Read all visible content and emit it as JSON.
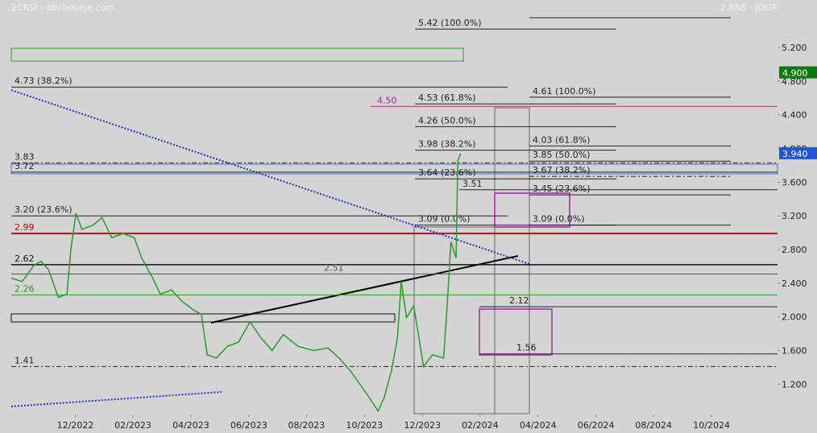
{
  "chart_data": {
    "type": "line",
    "title": "2CRSI - abcbourse.com",
    "subtitle": "2 ANS · JOUR",
    "series": [
      {
        "name": "2CRSI",
        "color": "#2a9a2a",
        "x": [
          2022.732,
          2022.764,
          2022.797,
          2022.818,
          2022.84,
          2022.868,
          2022.893,
          2022.904,
          2022.919,
          2022.936,
          2022.968,
          2022.994,
          2023.022,
          2023.054,
          2023.087,
          2023.108,
          2023.14,
          2023.162,
          2023.194,
          2023.226,
          2023.258,
          2023.28,
          2023.297,
          2023.323,
          2023.355,
          2023.387,
          2023.42,
          2023.452,
          2023.484,
          2023.516,
          2023.559,
          2023.602,
          2023.645,
          2023.677,
          2023.709,
          2023.742,
          2023.774,
          2023.789,
          2023.806,
          2023.828,
          2023.845,
          2023.856,
          2023.871,
          2023.892,
          2023.907,
          2023.92,
          2023.946,
          2023.978,
          2023.989,
          2023.999,
          2024.014,
          2024.019,
          2024.027
        ],
        "values": [
          2.46,
          2.42,
          2.61,
          2.66,
          2.56,
          2.23,
          2.27,
          2.8,
          3.23,
          3.04,
          3.09,
          3.18,
          2.94,
          2.99,
          2.94,
          2.7,
          2.46,
          2.27,
          2.32,
          2.18,
          2.08,
          2.03,
          1.55,
          1.51,
          1.65,
          1.7,
          1.94,
          1.75,
          1.6,
          1.79,
          1.65,
          1.6,
          1.63,
          1.51,
          1.36,
          1.17,
          0.98,
          0.88,
          1.03,
          1.36,
          1.75,
          2.42,
          1.99,
          2.13,
          1.75,
          1.41,
          1.55,
          1.51,
          2.18,
          2.89,
          2.7,
          3.85,
          3.94
        ]
      }
    ],
    "xlim": [
      2022.7,
      2024.94
    ],
    "ylim": [
      0.84,
      5.765
    ],
    "xticks": [
      {
        "value": 2022.917,
        "label": "12/2022"
      },
      {
        "value": 2023.083,
        "label": "02/2023"
      },
      {
        "value": 2023.25,
        "label": "04/2023"
      },
      {
        "value": 2023.417,
        "label": "06/2023"
      },
      {
        "value": 2023.583,
        "label": "08/2023"
      },
      {
        "value": 2023.75,
        "label": "10/2023"
      },
      {
        "value": 2023.917,
        "label": "12/2023"
      },
      {
        "value": 2024.083,
        "label": "02/2024"
      },
      {
        "value": 2024.25,
        "label": "04/2024"
      },
      {
        "value": 2024.417,
        "label": "06/2024"
      },
      {
        "value": 2024.583,
        "label": "08/2024"
      },
      {
        "value": 2024.75,
        "label": "10/2024"
      }
    ],
    "yticks": [
      {
        "value": 5.2,
        "label": "5.200"
      },
      {
        "value": 4.8,
        "label": "4.800"
      },
      {
        "value": 4.4,
        "label": "4.400"
      },
      {
        "value": 4.0,
        "label": "4.000"
      },
      {
        "value": 3.6,
        "label": "3.600"
      },
      {
        "value": 3.2,
        "label": "3.200"
      },
      {
        "value": 2.8,
        "label": "2.800"
      },
      {
        "value": 2.4,
        "label": "2.400"
      },
      {
        "value": 2.0,
        "label": "2.000"
      },
      {
        "value": 1.6,
        "label": "1.600"
      },
      {
        "value": 1.2,
        "label": "1.200"
      }
    ],
    "badges": [
      {
        "value": 4.9,
        "label": "4.900",
        "color": "#0a7a0a"
      },
      {
        "value": 3.94,
        "label": "3.940",
        "color": "#2255dd"
      }
    ],
    "levels": [
      {
        "value": 5.42,
        "label": "5.42  (100.0%)",
        "color": "#222"
      },
      {
        "value": 4.73,
        "label": "4.73  (38.2%)",
        "color": "#222"
      },
      {
        "value": 4.53,
        "label": "4.53  (61.8%)",
        "color": "#222"
      },
      {
        "value": 4.26,
        "label": "4.26  (50.0%)",
        "color": "#222"
      },
      {
        "value": 3.98,
        "label": "3.98  (38.2%)",
        "color": "#222"
      },
      {
        "value": 3.64,
        "label": "3.64  (23.6%)",
        "color": "#222"
      },
      {
        "value": 3.09,
        "label": "3.09  (0.0%)",
        "color": "#222"
      },
      {
        "value": 4.61,
        "label": "4.61  (100.0%)",
        "color": "#222"
      },
      {
        "value": 4.03,
        "label": "4.03  (61.8%)",
        "color": "#222"
      },
      {
        "value": 3.85,
        "label": "3.85  (50.0%)",
        "color": "#222"
      },
      {
        "value": 3.67,
        "label": "3.67  (38.2%)",
        "color": "#222"
      },
      {
        "value": 3.45,
        "label": "3.45  (23.6%)",
        "color": "#222"
      },
      {
        "value": 3.09,
        "label": "3.09  (0.0%)",
        "color": "#222"
      },
      {
        "value": 3.2,
        "label": "3.20  (23.6%)",
        "color": "#222"
      },
      {
        "value": 2.62,
        "label": "2.62",
        "color": "#111"
      },
      {
        "value": 2.51,
        "label": "2.51",
        "color": "#555"
      },
      {
        "value": 2.26,
        "label": "2.26",
        "color": "#2a9a2a"
      },
      {
        "value": 2.99,
        "label": "2.99",
        "color": "#cc0000"
      },
      {
        "value": 4.5,
        "label": "4.50",
        "color": "#aa22aa"
      },
      {
        "value": 3.83,
        "label": "3.83",
        "color": "#222"
      },
      {
        "value": 3.72,
        "label": "3.72",
        "color": "#222"
      },
      {
        "value": 3.51,
        "label": "3.51",
        "color": "#222"
      },
      {
        "value": 2.12,
        "label": "2.12",
        "color": "#222"
      },
      {
        "value": 1.56,
        "label": "1.56",
        "color": "#222"
      },
      {
        "value": 1.41,
        "label": "1.41",
        "color": "#222"
      }
    ]
  }
}
